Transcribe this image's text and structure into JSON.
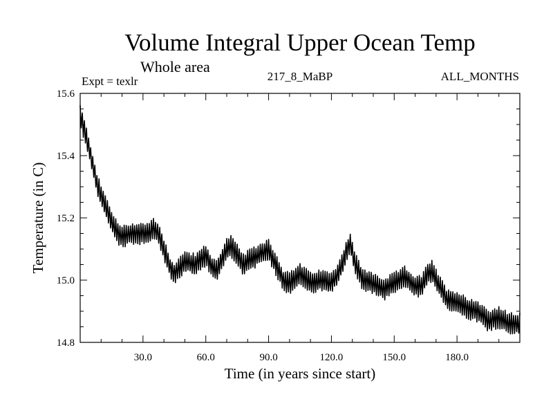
{
  "chart_data": {
    "type": "line",
    "title": "Volume Integral Upper Ocean Temp",
    "subtitle": "Whole area",
    "expt_label": "Expt = texlr",
    "run_label": "217_8_MaBP",
    "months_label": "ALL_MONTHS",
    "xlabel": "Time (in years since start)",
    "ylabel": "Temperature (in C)",
    "xlim": [
      0,
      210
    ],
    "ylim": [
      14.8,
      15.6
    ],
    "xticks": [
      30,
      60,
      90,
      120,
      150,
      180
    ],
    "xtick_labels": [
      "30.0",
      "60.0",
      "90.0",
      "120.0",
      "150.0",
      "180.0"
    ],
    "yticks": [
      14.8,
      15.0,
      15.2,
      15.4,
      15.6
    ],
    "ytick_labels": [
      "14.8",
      "15.0",
      "15.2",
      "15.4",
      "15.6"
    ],
    "seasonal_amplitude": 0.03,
    "series": [
      {
        "name": "Temperature",
        "x": [
          0,
          2,
          4,
          6,
          8,
          10,
          12,
          15,
          18,
          20,
          25,
          30,
          33,
          35,
          38,
          40,
          43,
          45,
          50,
          55,
          60,
          63,
          65,
          70,
          72,
          75,
          78,
          80,
          85,
          90,
          92,
          95,
          97,
          100,
          105,
          110,
          115,
          120,
          123,
          125,
          127,
          129,
          131,
          133,
          135,
          140,
          145,
          150,
          155,
          160,
          163,
          166,
          168,
          170,
          175,
          180,
          185,
          190,
          195,
          200,
          205,
          210
        ],
        "values": [
          15.53,
          15.48,
          15.43,
          15.37,
          15.31,
          15.27,
          15.24,
          15.19,
          15.15,
          15.14,
          15.15,
          15.15,
          15.15,
          15.17,
          15.14,
          15.1,
          15.04,
          15.02,
          15.06,
          15.05,
          15.08,
          15.04,
          15.03,
          15.1,
          15.11,
          15.08,
          15.05,
          15.06,
          15.08,
          15.1,
          15.07,
          15.03,
          15.0,
          14.99,
          15.02,
          14.99,
          15.0,
          14.99,
          15.02,
          15.05,
          15.09,
          15.12,
          15.06,
          15.03,
          15.0,
          14.99,
          14.97,
          14.99,
          15.01,
          14.98,
          14.98,
          15.02,
          15.03,
          15.0,
          14.94,
          14.93,
          14.91,
          14.9,
          14.87,
          14.88,
          14.86,
          14.86
        ]
      }
    ]
  }
}
